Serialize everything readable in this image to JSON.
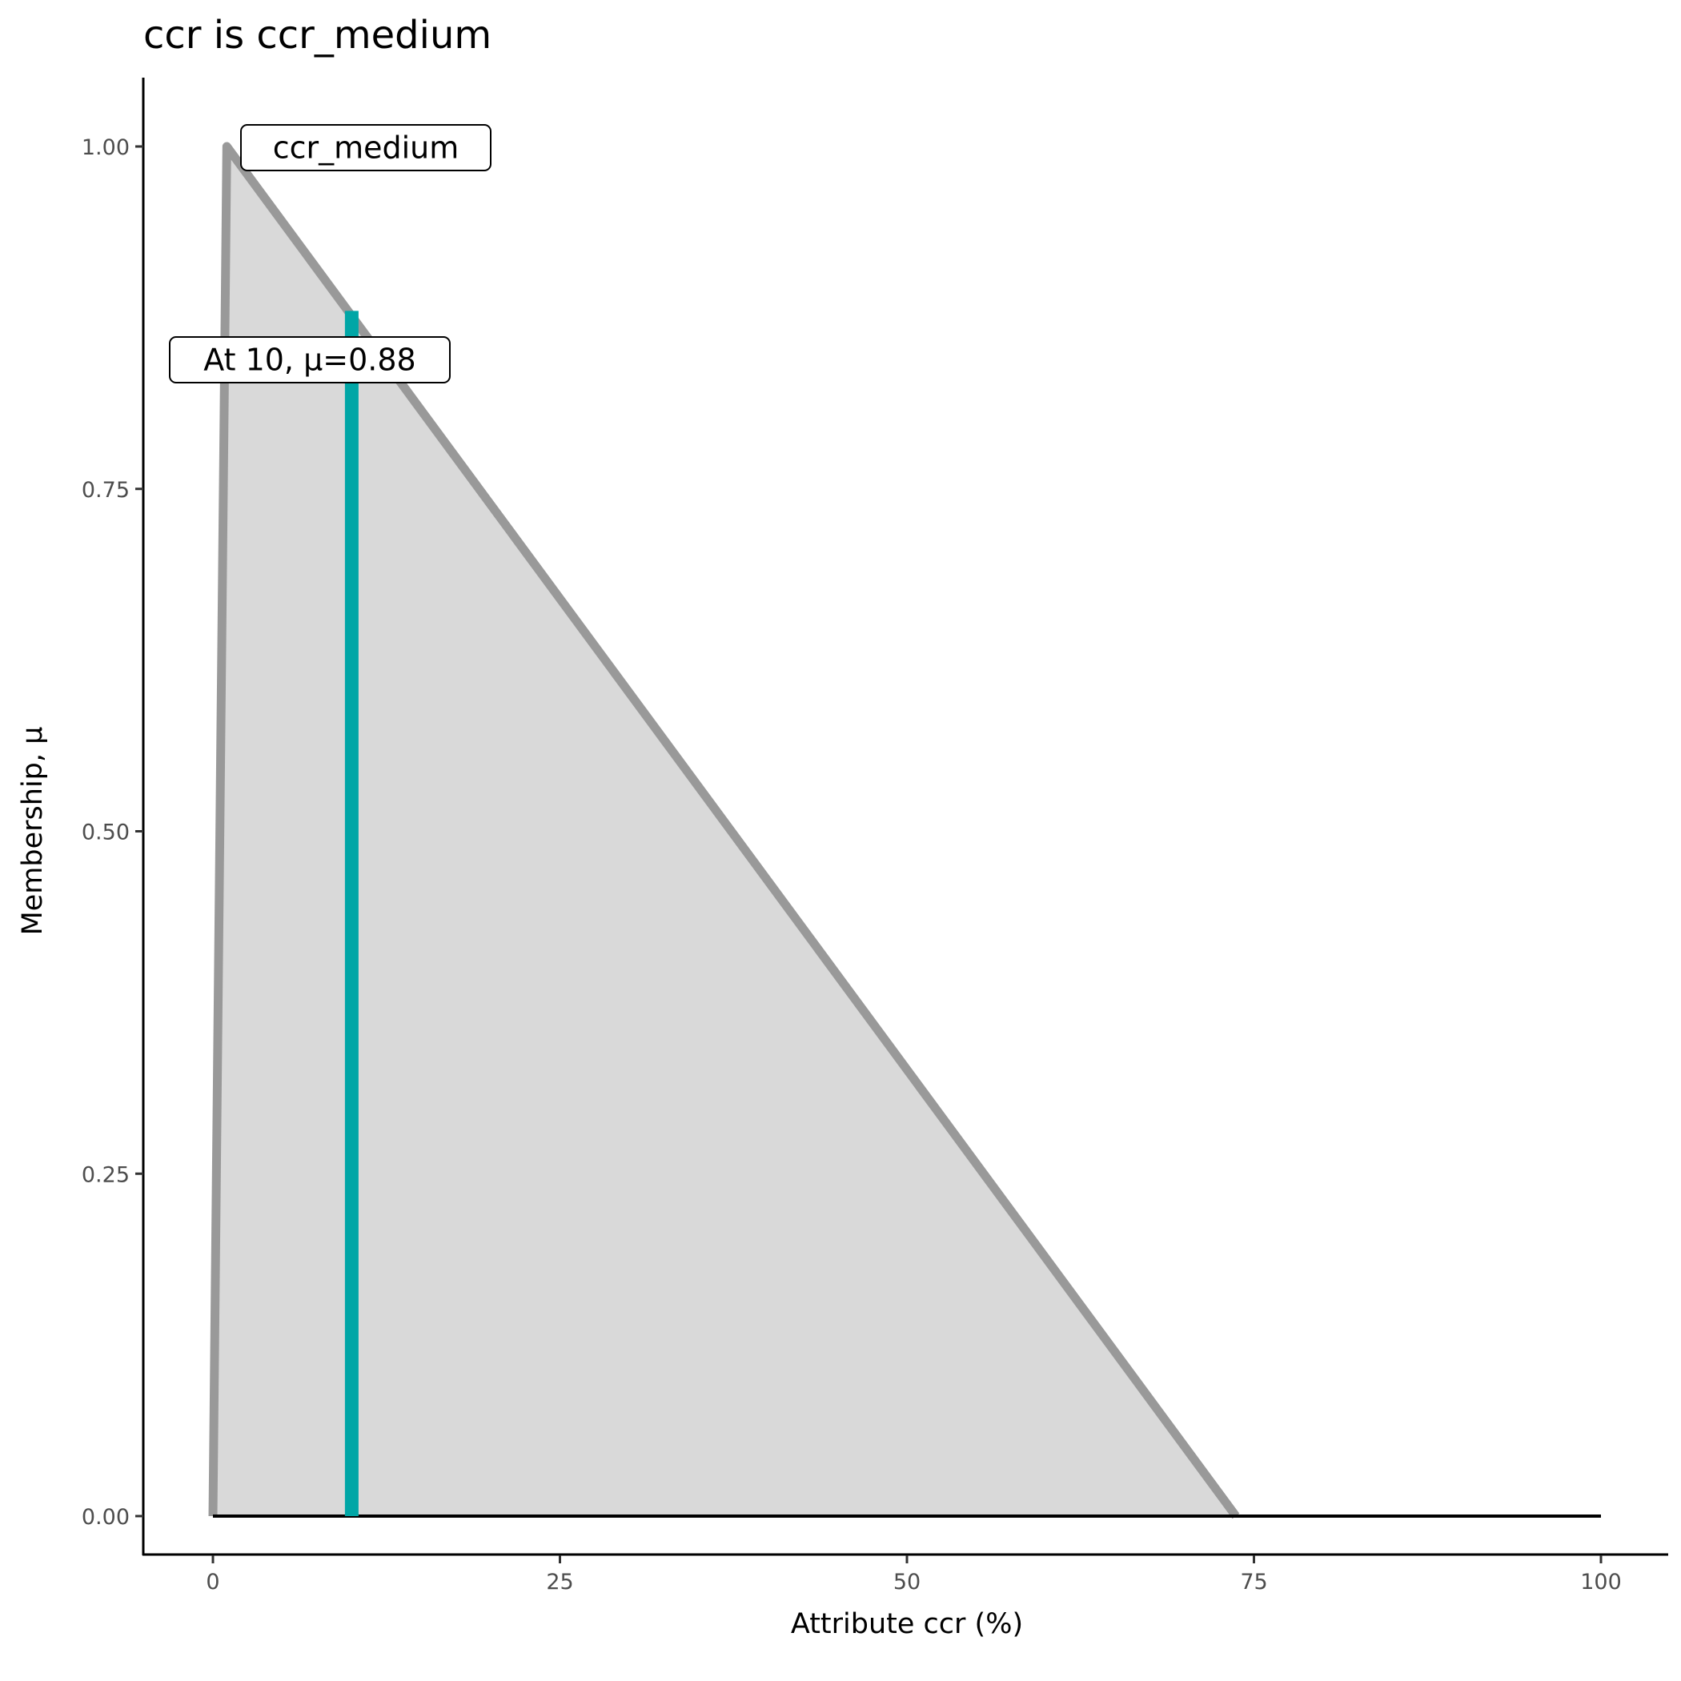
{
  "chart_data": {
    "type": "area",
    "title": "ccr is ccr_medium",
    "xlabel": "Attribute ccr (%)",
    "ylabel": "Membership, μ",
    "xlim": [
      -5,
      105
    ],
    "ylim": [
      -0.05,
      1.05
    ],
    "x_ticks": [
      0,
      25,
      50,
      75,
      100
    ],
    "x_tick_labels": [
      "0",
      "25",
      "50",
      "75",
      "100"
    ],
    "y_ticks": [
      0,
      0.25,
      0.5,
      0.75,
      1.0
    ],
    "y_tick_labels": [
      "0.00",
      "0.25",
      "0.50",
      "0.75",
      "1.00"
    ],
    "grid": false,
    "membership": {
      "name": "ccr_medium",
      "x": [
        0,
        1,
        73.7
      ],
      "y": [
        0,
        1,
        0
      ],
      "fill": "#d9d9d9",
      "stroke": "#999999"
    },
    "baseline": {
      "x": [
        0,
        100
      ],
      "y": 0,
      "color": "#000000"
    },
    "marker": {
      "x": 10,
      "mu": 0.88,
      "color": "#00a6a6"
    },
    "annotations": {
      "set_label": "ccr_medium",
      "value_label": "At 10, μ=0.88"
    }
  }
}
